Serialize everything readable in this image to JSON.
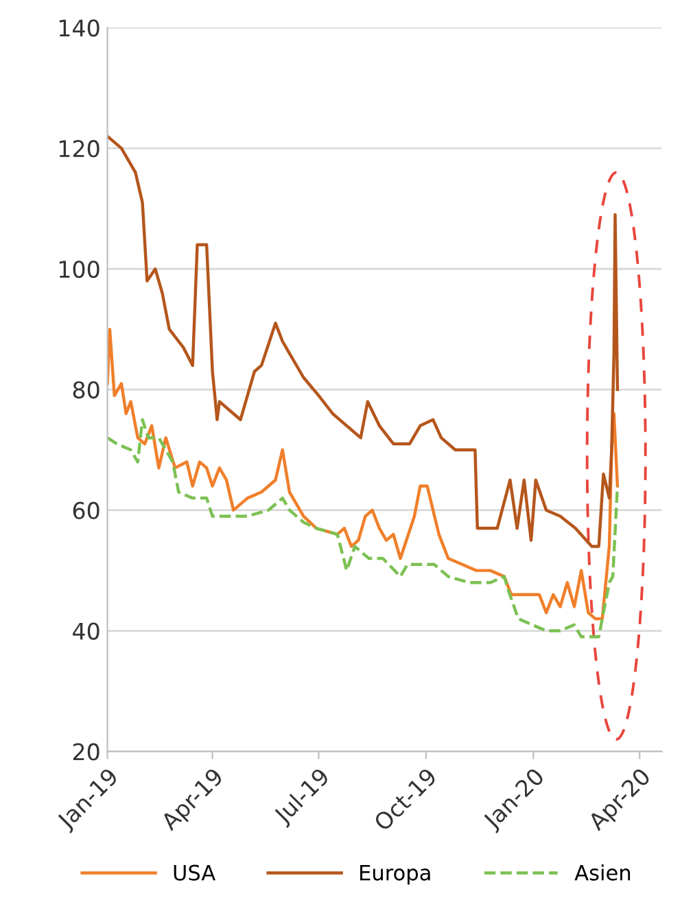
{
  "chart_data": {
    "type": "line",
    "xlim": [
      "2019-01-01",
      "2020-04-20"
    ],
    "ylim": [
      20,
      140
    ],
    "yticks": [
      20,
      40,
      60,
      80,
      100,
      120,
      140
    ],
    "xticks": [
      {
        "value": "2019-01-01",
        "label": "Jan-19"
      },
      {
        "value": "2019-04-01",
        "label": "Apr-19"
      },
      {
        "value": "2019-07-01",
        "label": "Jul-19"
      },
      {
        "value": "2019-10-01",
        "label": "Oct-19"
      },
      {
        "value": "2020-01-01",
        "label": "Jan-20"
      },
      {
        "value": "2020-04-01",
        "label": "Apr-20"
      }
    ],
    "grid": "y",
    "legend": "bottom",
    "marker": "none",
    "series": [
      {
        "name": "USA",
        "color": "#f07f2a",
        "line_style": "solid",
        "x": [
          "2019-01-01",
          "2019-01-03",
          "2019-01-07",
          "2019-01-13",
          "2019-01-17",
          "2019-01-21",
          "2019-01-27",
          "2019-02-02",
          "2019-02-08",
          "2019-02-14",
          "2019-02-20",
          "2019-02-28",
          "2019-03-10",
          "2019-03-15",
          "2019-03-21",
          "2019-03-27",
          "2019-04-01",
          "2019-04-07",
          "2019-04-13",
          "2019-04-19",
          "2019-05-01",
          "2019-05-13",
          "2019-05-25",
          "2019-05-31",
          "2019-06-06",
          "2019-06-18",
          "2019-06-29",
          "2019-07-17",
          "2019-07-23",
          "2019-07-29",
          "2019-08-04",
          "2019-08-10",
          "2019-08-16",
          "2019-08-22",
          "2019-08-28",
          "2019-09-03",
          "2019-09-09",
          "2019-09-21",
          "2019-09-26",
          "2019-10-02",
          "2019-10-12",
          "2019-10-20",
          "2019-11-01",
          "2019-11-13",
          "2019-11-25",
          "2019-12-07",
          "2019-12-13",
          "2019-12-25",
          "2020-01-06",
          "2020-01-12",
          "2020-01-18",
          "2020-01-24",
          "2020-01-30",
          "2020-02-05",
          "2020-02-11",
          "2020-02-17",
          "2020-02-23",
          "2020-02-29",
          "2020-03-06",
          "2020-03-08",
          "2020-03-10",
          "2020-03-13"
        ],
        "values": [
          81,
          90,
          79,
          81,
          76,
          78,
          72,
          71,
          74,
          67,
          72,
          67,
          68,
          64,
          68,
          67,
          64,
          67,
          65,
          60,
          62,
          63,
          65,
          70,
          63,
          59,
          57,
          56,
          57,
          54,
          55,
          59,
          60,
          57,
          55,
          56,
          52,
          59,
          64,
          64,
          56,
          52,
          51,
          50,
          50,
          49,
          46,
          46,
          46,
          43,
          46,
          44,
          48,
          44,
          50,
          43,
          42,
          42,
          54,
          70,
          76,
          64
        ]
      },
      {
        "name": "Europa",
        "color": "#b5561c",
        "line_style": "solid",
        "x": [
          "2019-01-01",
          "2019-01-07",
          "2019-01-13",
          "2019-01-25",
          "2019-01-31",
          "2019-02-04",
          "2019-02-11",
          "2019-02-17",
          "2019-02-23",
          "2019-03-07",
          "2019-03-15",
          "2019-03-19",
          "2019-03-27",
          "2019-04-01",
          "2019-04-05",
          "2019-04-07",
          "2019-04-19",
          "2019-04-25",
          "2019-05-07",
          "2019-05-13",
          "2019-05-25",
          "2019-05-31",
          "2019-06-06",
          "2019-06-18",
          "2019-07-01",
          "2019-07-13",
          "2019-07-25",
          "2019-08-06",
          "2019-08-12",
          "2019-08-22",
          "2019-09-03",
          "2019-09-17",
          "2019-09-26",
          "2019-10-07",
          "2019-10-14",
          "2019-10-26",
          "2019-11-07",
          "2019-11-12",
          "2019-11-14",
          "2019-12-01",
          "2019-12-12",
          "2019-12-18",
          "2019-12-24",
          "2019-12-30",
          "2020-01-03",
          "2020-01-12",
          "2020-01-24",
          "2020-02-06",
          "2020-02-20",
          "2020-02-26",
          "2020-03-01",
          "2020-03-06",
          "2020-03-08",
          "2020-03-10",
          "2020-03-11",
          "2020-03-13"
        ],
        "values": [
          122,
          121,
          120,
          116,
          111,
          98,
          100,
          96,
          90,
          87,
          84,
          104,
          104,
          83,
          75,
          78,
          76,
          75,
          83,
          84,
          91,
          88,
          86,
          82,
          79,
          76,
          74,
          72,
          78,
          74,
          71,
          71,
          74,
          75,
          72,
          70,
          70,
          70,
          57,
          57,
          65,
          57,
          65,
          55,
          65,
          60,
          59,
          57,
          54,
          54,
          66,
          62,
          70,
          86,
          109,
          80
        ]
      },
      {
        "name": "Asien",
        "color": "#7cc153",
        "line_style": "dashed",
        "x": [
          "2019-01-01",
          "2019-01-09",
          "2019-01-21",
          "2019-01-27",
          "2019-01-31",
          "2019-02-05",
          "2019-02-14",
          "2019-02-20",
          "2019-02-26",
          "2019-03-03",
          "2019-03-15",
          "2019-03-27",
          "2019-04-01",
          "2019-04-13",
          "2019-05-01",
          "2019-05-19",
          "2019-05-31",
          "2019-06-06",
          "2019-06-18",
          "2019-06-29",
          "2019-07-17",
          "2019-07-25",
          "2019-08-01",
          "2019-08-13",
          "2019-08-25",
          "2019-09-09",
          "2019-09-15",
          "2019-09-26",
          "2019-10-08",
          "2019-10-20",
          "2019-11-07",
          "2019-11-25",
          "2019-12-07",
          "2019-12-10",
          "2019-12-19",
          "2019-12-31",
          "2020-01-12",
          "2020-01-24",
          "2020-02-05",
          "2020-02-11",
          "2020-02-20",
          "2020-02-26",
          "2020-03-01",
          "2020-03-06",
          "2020-03-09",
          "2020-03-13"
        ],
        "values": [
          72,
          71,
          70,
          68,
          75,
          72,
          72,
          70,
          68,
          63,
          62,
          62,
          59,
          59,
          59,
          60,
          62,
          60,
          58,
          57,
          56,
          50,
          54,
          52,
          52,
          49,
          51,
          51,
          51,
          49,
          48,
          48,
          49,
          47,
          42,
          41,
          40,
          40,
          41,
          39,
          39,
          39,
          43,
          48,
          49,
          64
        ]
      }
    ]
  }
}
